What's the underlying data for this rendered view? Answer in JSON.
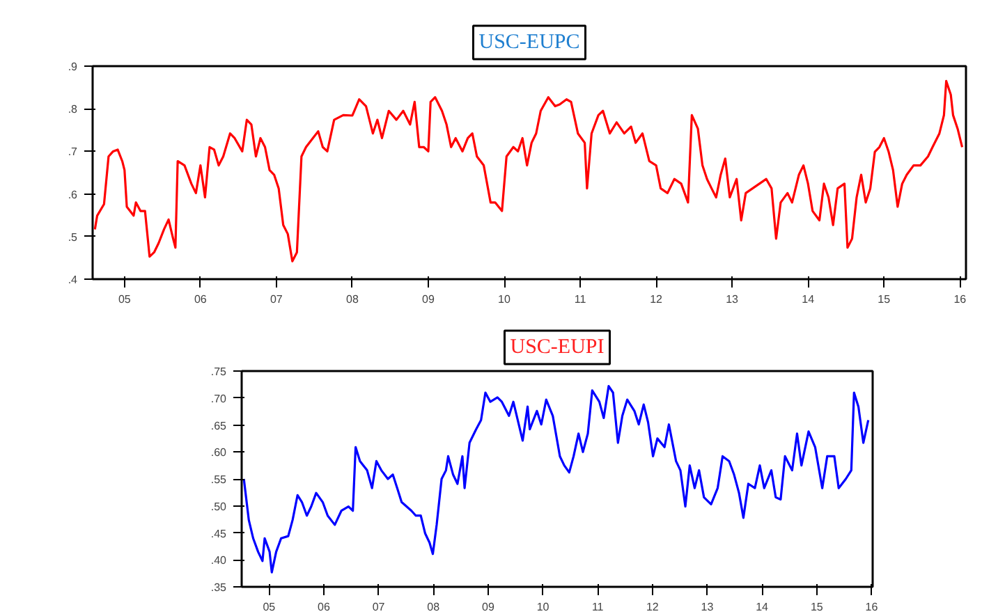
{
  "chart_data": [
    {
      "type": "line",
      "title": "USC-EUPC",
      "xlim": [
        2004.58,
        2016.08
      ],
      "ylim": [
        0.4,
        0.9
      ],
      "xticks": [
        {
          "value": 2005,
          "label": "05"
        },
        {
          "value": 2006,
          "label": "06"
        },
        {
          "value": 2007,
          "label": "07"
        },
        {
          "value": 2008,
          "label": "08"
        },
        {
          "value": 2009,
          "label": "09"
        },
        {
          "value": 2010,
          "label": "10"
        },
        {
          "value": 2011,
          "label": "11"
        },
        {
          "value": 2012,
          "label": "12"
        },
        {
          "value": 2013,
          "label": "13"
        },
        {
          "value": 2014,
          "label": "14"
        },
        {
          "value": 2015,
          "label": "15"
        },
        {
          "value": 2016,
          "label": "16"
        }
      ],
      "yticks": [
        {
          "value": 0.4,
          "label": ".4"
        },
        {
          "value": 0.5,
          "label": ".5"
        },
        {
          "value": 0.6,
          "label": ".6"
        },
        {
          "value": 0.7,
          "label": ".7"
        },
        {
          "value": 0.8,
          "label": ".8"
        },
        {
          "value": 0.9,
          "label": ".9"
        }
      ],
      "grid": false,
      "marker": "none",
      "line_style": "solid",
      "series": [
        {
          "color": "#ff0000",
          "x": [
            2004.61,
            2004.64,
            2004.73,
            2004.79,
            2004.85,
            2004.91,
            2004.97,
            2005.0,
            2005.03,
            2005.12,
            2005.15,
            2005.21,
            2005.27,
            2005.33,
            2005.39,
            2005.45,
            2005.52,
            2005.58,
            2005.64,
            2005.67,
            2005.7,
            2005.79,
            2005.88,
            2005.94,
            2006.0,
            2006.06,
            2006.12,
            2006.18,
            2006.24,
            2006.3,
            2006.39,
            2006.45,
            2006.55,
            2006.61,
            2006.67,
            2006.73,
            2006.79,
            2006.85,
            2006.91,
            2006.97,
            2007.03,
            2007.09,
            2007.15,
            2007.21,
            2007.27,
            2007.33,
            2007.39,
            2007.48,
            2007.55,
            2007.61,
            2007.67,
            2007.76,
            2007.88,
            2008.0,
            2008.09,
            2008.18,
            2008.27,
            2008.33,
            2008.39,
            2008.48,
            2008.58,
            2008.67,
            2008.76,
            2008.82,
            2008.88,
            2008.94,
            2009.0,
            2009.03,
            2009.09,
            2009.18,
            2009.24,
            2009.3,
            2009.36,
            2009.45,
            2009.52,
            2009.58,
            2009.64,
            2009.73,
            2009.82,
            2009.88,
            2009.97,
            2010.03,
            2010.12,
            2010.18,
            2010.24,
            2010.3,
            2010.36,
            2010.42,
            2010.48,
            2010.58,
            2010.67,
            2010.73,
            2010.82,
            2010.88,
            2010.97,
            2011.06,
            2011.09,
            2011.15,
            2011.24,
            2011.3,
            2011.39,
            2011.48,
            2011.58,
            2011.67,
            2011.73,
            2011.82,
            2011.91,
            2012.0,
            2012.06,
            2012.15,
            2012.24,
            2012.33,
            2012.42,
            2012.47,
            2012.55,
            2012.61,
            2012.67,
            2012.73,
            2012.79,
            2012.85,
            2012.91,
            2012.97,
            2013.06,
            2013.12,
            2013.18,
            2013.27,
            2013.36,
            2013.45,
            2013.52,
            2013.58,
            2013.64,
            2013.73,
            2013.79,
            2013.88,
            2013.94,
            2014.0,
            2014.06,
            2014.15,
            2014.21,
            2014.27,
            2014.33,
            2014.39,
            2014.48,
            2014.52,
            2014.58,
            2014.64,
            2014.7,
            2014.76,
            2014.82,
            2014.88,
            2014.94,
            2015.0,
            2015.06,
            2015.12,
            2015.18,
            2015.24,
            2015.3,
            2015.39,
            2015.48,
            2015.58,
            2015.64,
            2015.73,
            2015.79,
            2015.82,
            2015.88,
            2015.91,
            2015.97,
            2016.03
          ],
          "values": [
            0.517,
            0.549,
            0.576,
            0.688,
            0.7,
            0.704,
            0.677,
            0.656,
            0.57,
            0.549,
            0.58,
            0.56,
            0.56,
            0.453,
            0.463,
            0.485,
            0.517,
            0.54,
            0.495,
            0.474,
            0.677,
            0.667,
            0.624,
            0.602,
            0.667,
            0.592,
            0.71,
            0.704,
            0.667,
            0.688,
            0.742,
            0.731,
            0.7,
            0.774,
            0.763,
            0.688,
            0.731,
            0.71,
            0.656,
            0.645,
            0.613,
            0.527,
            0.506,
            0.442,
            0.463,
            0.688,
            0.71,
            0.731,
            0.747,
            0.71,
            0.7,
            0.774,
            0.785,
            0.784,
            0.822,
            0.806,
            0.742,
            0.774,
            0.731,
            0.795,
            0.774,
            0.795,
            0.763,
            0.816,
            0.71,
            0.71,
            0.7,
            0.816,
            0.827,
            0.795,
            0.763,
            0.71,
            0.731,
            0.7,
            0.731,
            0.742,
            0.688,
            0.667,
            0.58,
            0.58,
            0.56,
            0.688,
            0.71,
            0.7,
            0.731,
            0.667,
            0.72,
            0.742,
            0.795,
            0.827,
            0.806,
            0.81,
            0.822,
            0.816,
            0.742,
            0.72,
            0.613,
            0.742,
            0.785,
            0.795,
            0.742,
            0.768,
            0.742,
            0.758,
            0.72,
            0.742,
            0.677,
            0.667,
            0.613,
            0.602,
            0.635,
            0.624,
            0.58,
            0.785,
            0.753,
            0.667,
            0.635,
            0.613,
            0.592,
            0.645,
            0.683,
            0.592,
            0.635,
            0.538,
            0.602,
            0.613,
            0.624,
            0.635,
            0.613,
            0.495,
            0.58,
            0.602,
            0.58,
            0.645,
            0.667,
            0.624,
            0.56,
            0.538,
            0.624,
            0.592,
            0.527,
            0.613,
            0.624,
            0.474,
            0.495,
            0.592,
            0.645,
            0.58,
            0.613,
            0.699,
            0.71,
            0.731,
            0.7,
            0.656,
            0.57,
            0.624,
            0.645,
            0.667,
            0.667,
            0.688,
            0.71,
            0.742,
            0.785,
            0.865,
            0.833,
            0.785,
            0.753,
            0.71
          ]
        }
      ]
    },
    {
      "type": "line",
      "title": "USC-EUPI",
      "xlim": [
        2004.5,
        2016.02
      ],
      "ylim": [
        0.35,
        0.75
      ],
      "xticks": [
        {
          "value": 2005,
          "label": "05"
        },
        {
          "value": 2006,
          "label": "06"
        },
        {
          "value": 2007,
          "label": "07"
        },
        {
          "value": 2008,
          "label": "08"
        },
        {
          "value": 2009,
          "label": "09"
        },
        {
          "value": 2010,
          "label": "10"
        },
        {
          "value": 2011,
          "label": "11"
        },
        {
          "value": 2012,
          "label": "12"
        },
        {
          "value": 2013,
          "label": "13"
        },
        {
          "value": 2014,
          "label": "14"
        },
        {
          "value": 2015,
          "label": "15"
        },
        {
          "value": 2016,
          "label": "16"
        }
      ],
      "yticks": [
        {
          "value": 0.35,
          "label": ".35"
        },
        {
          "value": 0.4,
          "label": ".40"
        },
        {
          "value": 0.45,
          "label": ".45"
        },
        {
          "value": 0.5,
          "label": ".50"
        },
        {
          "value": 0.55,
          "label": ".55"
        },
        {
          "value": 0.6,
          "label": ".60"
        },
        {
          "value": 0.65,
          "label": ".65"
        },
        {
          "value": 0.7,
          "label": ".70"
        },
        {
          "value": 0.75,
          "label": ".75"
        }
      ],
      "grid": false,
      "marker": "none",
      "line_style": "solid",
      "series": [
        {
          "color": "#0000ff",
          "x": [
            2004.54,
            2004.63,
            2004.71,
            2004.8,
            2004.88,
            2004.92,
            2005.01,
            2005.05,
            2005.13,
            2005.22,
            2005.35,
            2005.43,
            2005.52,
            2005.6,
            2005.69,
            2005.77,
            2005.86,
            2005.98,
            2006.07,
            2006.2,
            2006.32,
            2006.45,
            2006.53,
            2006.58,
            2006.66,
            2006.79,
            2006.88,
            2006.96,
            2007.05,
            2007.17,
            2007.26,
            2007.34,
            2007.42,
            2007.51,
            2007.6,
            2007.68,
            2007.77,
            2007.85,
            2007.93,
            2007.99,
            2008.06,
            2008.15,
            2008.23,
            2008.27,
            2008.36,
            2008.44,
            2008.53,
            2008.57,
            2008.66,
            2008.78,
            2008.87,
            2008.95,
            2009.04,
            2009.17,
            2009.25,
            2009.38,
            2009.46,
            2009.55,
            2009.63,
            2009.72,
            2009.76,
            2009.89,
            2009.97,
            2010.06,
            2010.18,
            2010.31,
            2010.39,
            2010.48,
            2010.56,
            2010.65,
            2010.73,
            2010.82,
            2010.9,
            2011.03,
            2011.11,
            2011.2,
            2011.28,
            2011.37,
            2011.45,
            2011.54,
            2011.67,
            2011.75,
            2011.84,
            2011.92,
            2012.01,
            2012.09,
            2012.22,
            2012.3,
            2012.43,
            2012.51,
            2012.6,
            2012.68,
            2012.77,
            2012.85,
            2012.94,
            2013.07,
            2013.19,
            2013.28,
            2013.4,
            2013.49,
            2013.58,
            2013.66,
            2013.75,
            2013.87,
            2013.96,
            2014.04,
            2014.17,
            2014.25,
            2014.34,
            2014.42,
            2014.55,
            2014.64,
            2014.72,
            2014.85,
            2014.97,
            2015.1,
            2015.19,
            2015.32,
            2015.4,
            2015.53,
            2015.63,
            2015.68,
            2015.76,
            2015.85,
            2015.94
          ],
          "values": [
            0.55,
            0.474,
            0.44,
            0.415,
            0.398,
            0.44,
            0.415,
            0.377,
            0.415,
            0.44,
            0.444,
            0.474,
            0.52,
            0.507,
            0.482,
            0.499,
            0.524,
            0.507,
            0.482,
            0.465,
            0.491,
            0.499,
            0.491,
            0.609,
            0.583,
            0.566,
            0.533,
            0.583,
            0.566,
            0.55,
            0.558,
            0.533,
            0.507,
            0.499,
            0.491,
            0.482,
            0.482,
            0.449,
            0.432,
            0.411,
            0.465,
            0.55,
            0.566,
            0.592,
            0.558,
            0.541,
            0.592,
            0.533,
            0.617,
            0.642,
            0.659,
            0.71,
            0.693,
            0.701,
            0.693,
            0.667,
            0.693,
            0.655,
            0.621,
            0.684,
            0.642,
            0.676,
            0.651,
            0.697,
            0.667,
            0.592,
            0.575,
            0.562,
            0.592,
            0.634,
            0.6,
            0.634,
            0.714,
            0.693,
            0.663,
            0.722,
            0.71,
            0.617,
            0.667,
            0.697,
            0.676,
            0.651,
            0.688,
            0.655,
            0.592,
            0.625,
            0.609,
            0.651,
            0.583,
            0.566,
            0.499,
            0.575,
            0.533,
            0.566,
            0.516,
            0.503,
            0.533,
            0.592,
            0.583,
            0.558,
            0.524,
            0.478,
            0.541,
            0.533,
            0.575,
            0.533,
            0.566,
            0.516,
            0.512,
            0.592,
            0.566,
            0.634,
            0.575,
            0.638,
            0.609,
            0.533,
            0.592,
            0.592,
            0.533,
            0.55,
            0.566,
            0.71,
            0.684,
            0.617,
            0.659
          ]
        }
      ]
    }
  ]
}
